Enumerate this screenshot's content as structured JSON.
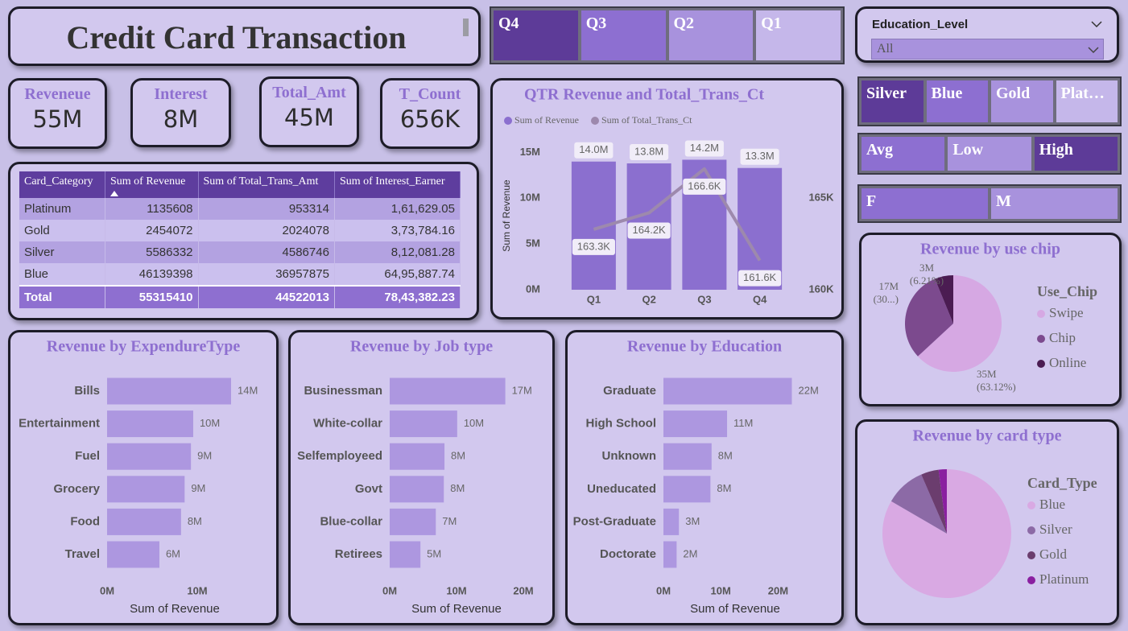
{
  "title": "Credit Card Transaction",
  "kpis": [
    {
      "label": "Reveneue",
      "value": "55M"
    },
    {
      "label": "Interest",
      "value": "8M"
    },
    {
      "label": "Total_Amt",
      "value": "45M"
    },
    {
      "label": "T_Count",
      "value": "656K"
    }
  ],
  "slicers": {
    "quarters": [
      {
        "label": "Q4",
        "selected": true
      },
      {
        "label": "Q3",
        "selected": false
      },
      {
        "label": "Q2",
        "selected": false
      },
      {
        "label": "Q1",
        "selected": false
      }
    ],
    "card_category": [
      {
        "label": "Silver",
        "selected": true
      },
      {
        "label": "Blue",
        "selected": false
      },
      {
        "label": "Gold",
        "selected": false
      },
      {
        "label": "Plat…",
        "selected": false
      }
    ],
    "level": [
      {
        "label": "Avg",
        "selected": false
      },
      {
        "label": "Low",
        "selected": false
      },
      {
        "label": "High",
        "selected": true
      }
    ],
    "gender": [
      {
        "label": "F",
        "selected": false
      },
      {
        "label": "M",
        "selected": false
      }
    ]
  },
  "education_filter": {
    "title": "Education_Level",
    "value": "All"
  },
  "table": {
    "header": [
      "Card_Category",
      "Sum of Revenue",
      "Sum of Total_Trans_Amt",
      "Sum of Interest_Earner"
    ],
    "rows": [
      [
        "Platinum",
        "1135608",
        "953314",
        "1,61,629.05"
      ],
      [
        "Gold",
        "2454072",
        "2024078",
        "3,73,784.16"
      ],
      [
        "Silver",
        "5586332",
        "4586746",
        "8,12,081.28"
      ],
      [
        "Blue",
        "46139398",
        "36957875",
        "64,95,887.74"
      ]
    ],
    "total": [
      "Total",
      "55315410",
      "44522013",
      "78,43,382.23"
    ]
  },
  "chart_data": [
    {
      "type": "combo",
      "title": "QTR Revenue and Total_Trans_Ct",
      "categories": [
        "Q1",
        "Q2",
        "Q3",
        "Q4"
      ],
      "ylabel": "Sum of Revenue",
      "series": [
        {
          "name": "Sum of Revenue",
          "color": "#8b6fcf",
          "values": [
            14000000,
            13800000,
            14200000,
            13300000
          ],
          "value_labels": [
            "14.0M",
            "13.8M",
            "14.2M",
            "13.3M"
          ]
        },
        {
          "name": "Sum of Total_Trans_Ct",
          "color": "#9d89ad",
          "axis": "y2",
          "values": [
            163300,
            164200,
            166600,
            161600
          ],
          "value_labels": [
            "163.3K",
            "164.2K",
            "166.6K",
            "161.6K"
          ]
        }
      ],
      "ylim": [
        0,
        16000000
      ],
      "yticks": [
        {
          "value": 0,
          "label": "0M"
        },
        {
          "value": 5000000,
          "label": "5M"
        },
        {
          "value": 10000000,
          "label": "10M"
        },
        {
          "value": 15000000,
          "label": "15M"
        }
      ],
      "y2lim": [
        160000,
        168000
      ],
      "y2ticks": [
        {
          "value": 160000,
          "label": "160K"
        },
        {
          "value": 165000,
          "label": "165K"
        }
      ]
    },
    {
      "type": "barh",
      "title": "Revenue by ExpendureType",
      "color": "#ad97e0",
      "xlabel": "Sum of Revenue",
      "categories": [
        "Bills",
        "Entertainment",
        "Fuel",
        "Grocery",
        "Food",
        "Travel"
      ],
      "values": [
        13750000,
        9550000,
        9300000,
        8600000,
        8200000,
        5800000
      ],
      "value_labels": [
        "14M",
        "10M",
        "9M",
        "9M",
        "8M",
        "6M"
      ],
      "xlim": [
        0,
        15000000
      ],
      "xticks": [
        {
          "value": 0,
          "label": "0M"
        },
        {
          "value": 10000000,
          "label": "10M"
        }
      ]
    },
    {
      "type": "barh",
      "title": "Revenue by Job type",
      "color": "#ad97e0",
      "xlabel": "Sum of Revenue",
      "categories": [
        "Businessman",
        "White-collar",
        "Selfemployeed",
        "Govt",
        "Blue-collar",
        "Retirees"
      ],
      "values": [
        17300000,
        10100000,
        8200000,
        8100000,
        6900000,
        4600000
      ],
      "value_labels": [
        "17M",
        "10M",
        "8M",
        "8M",
        "7M",
        "5M"
      ],
      "xlim": [
        0,
        20000000
      ],
      "xticks": [
        {
          "value": 0,
          "label": "0M"
        },
        {
          "value": 10000000,
          "label": "10M"
        },
        {
          "value": 20000000,
          "label": "20M"
        }
      ]
    },
    {
      "type": "barh",
      "title": "Revenue by Education",
      "color": "#ad97e0",
      "xlabel": "Sum of Revenue",
      "categories": [
        "Graduate",
        "High School",
        "Unknown",
        "Uneducated",
        "Post-Graduate",
        "Doctorate"
      ],
      "values": [
        22400000,
        11100000,
        8400000,
        8200000,
        2700000,
        2300000
      ],
      "value_labels": [
        "22M",
        "11M",
        "8M",
        "8M",
        "3M",
        "2M"
      ],
      "xlim": [
        0,
        25000000
      ],
      "xticks": [
        {
          "value": 0,
          "label": "0M"
        },
        {
          "value": 10000000,
          "label": "10M"
        },
        {
          "value": 20000000,
          "label": "20M"
        }
      ]
    },
    {
      "type": "pie",
      "title": "Revenue by use chip",
      "legend_title": "Use_Chip",
      "categories": [
        "Swipe",
        "Chip",
        "Online"
      ],
      "values": [
        34900000,
        16970000,
        3430000
      ],
      "value_labels": [
        "35M",
        "17M",
        "3M"
      ],
      "percent_labels": [
        "(63.12%)",
        "(30...)",
        "(6.21%)"
      ],
      "colors": [
        "#d6a8e3",
        "#7c4a8e",
        "#4b1c52"
      ]
    },
    {
      "type": "pie",
      "title": "Revenue by card type",
      "legend_title": "Card_Type",
      "categories": [
        "Blue",
        "Silver",
        "Gold",
        "Platinum"
      ],
      "values": [
        46100000,
        5590000,
        2450000,
        1140000
      ],
      "colors": [
        "#d9a9e3",
        "#8c6aa6",
        "#6b3d6e",
        "#8a1fa0"
      ]
    }
  ]
}
